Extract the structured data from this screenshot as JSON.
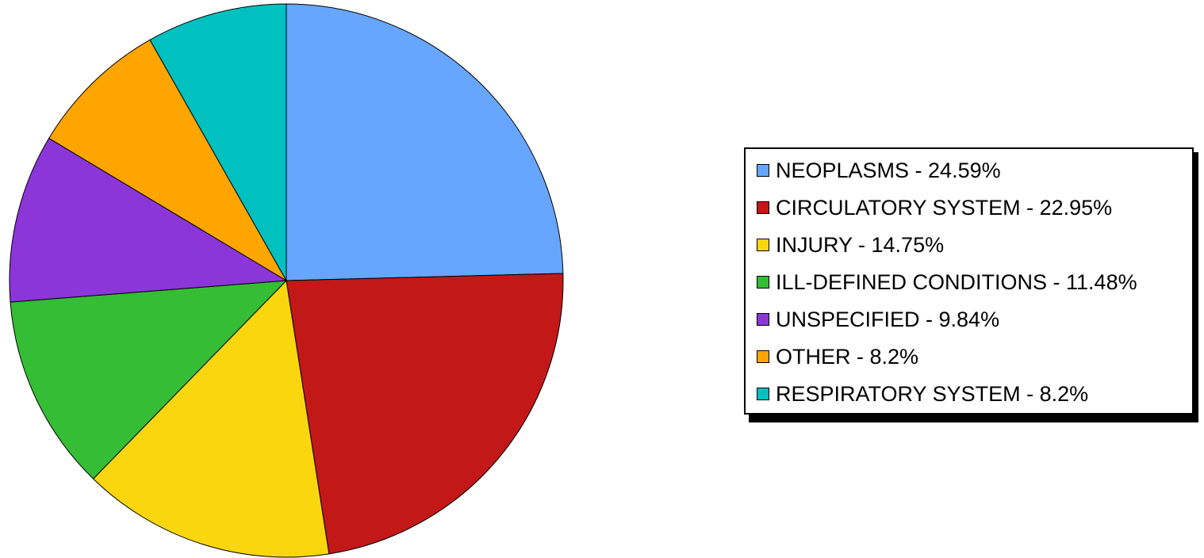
{
  "chart_data": {
    "type": "pie",
    "slices": [
      {
        "label": "NEOPLASMS",
        "value": 24.59,
        "legend": "NEOPLASMS - 24.59%",
        "color": "#66a6ff"
      },
      {
        "label": "CIRCULATORY SYSTEM",
        "value": 22.95,
        "legend": "CIRCULATORY SYSTEM - 22.95%",
        "color": "#c31818"
      },
      {
        "label": "INJURY",
        "value": 14.75,
        "legend": "INJURY - 14.75%",
        "color": "#fad60f"
      },
      {
        "label": "ILL-DEFINED CONDITIONS",
        "value": 11.48,
        "legend": "ILL-DEFINED CONDITIONS - 11.48%",
        "color": "#35bd35"
      },
      {
        "label": "UNSPECIFIED",
        "value": 9.84,
        "legend": "UNSPECIFIED - 9.84%",
        "color": "#8c36da"
      },
      {
        "label": "OTHER",
        "value": 8.2,
        "legend": "OTHER - 8.2%",
        "color": "#fea500"
      },
      {
        "label": "RESPIRATORY SYSTEM",
        "value": 8.2,
        "legend": "RESPIRATORY SYSTEM - 8.2%",
        "color": "#00c0c0"
      }
    ],
    "start_angle": "12 o'clock",
    "direction": "clockwise",
    "legend_position": "right"
  }
}
